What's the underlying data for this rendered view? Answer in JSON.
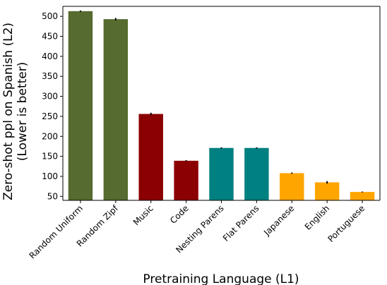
{
  "chart_data": {
    "type": "bar",
    "xlabel": "Pretraining Language (L1)",
    "ylabel_lines": [
      "Zero-shot ppl on Spanish (L2)",
      "(Lower is better)"
    ],
    "ylim": [
      40,
      525
    ],
    "yticks": [
      50,
      100,
      150,
      200,
      250,
      300,
      350,
      400,
      450,
      500
    ],
    "categories": [
      "Random Uniform",
      "Random Zipf",
      "Music",
      "Code",
      "Nesting Parens",
      "Flat Parens",
      "Japanese",
      "English",
      "Portuguese"
    ],
    "values": [
      513,
      493,
      256,
      139,
      171,
      171,
      108,
      85,
      61
    ],
    "errors": [
      1.5,
      3,
      3,
      1.5,
      1.5,
      1.5,
      1.5,
      3,
      1
    ],
    "colors": [
      "#556b2f",
      "#556b2f",
      "#8b0000",
      "#8b0000",
      "#008080",
      "#008080",
      "#ffa500",
      "#ffa500",
      "#ffa500"
    ],
    "grid": false,
    "legend": "none"
  }
}
